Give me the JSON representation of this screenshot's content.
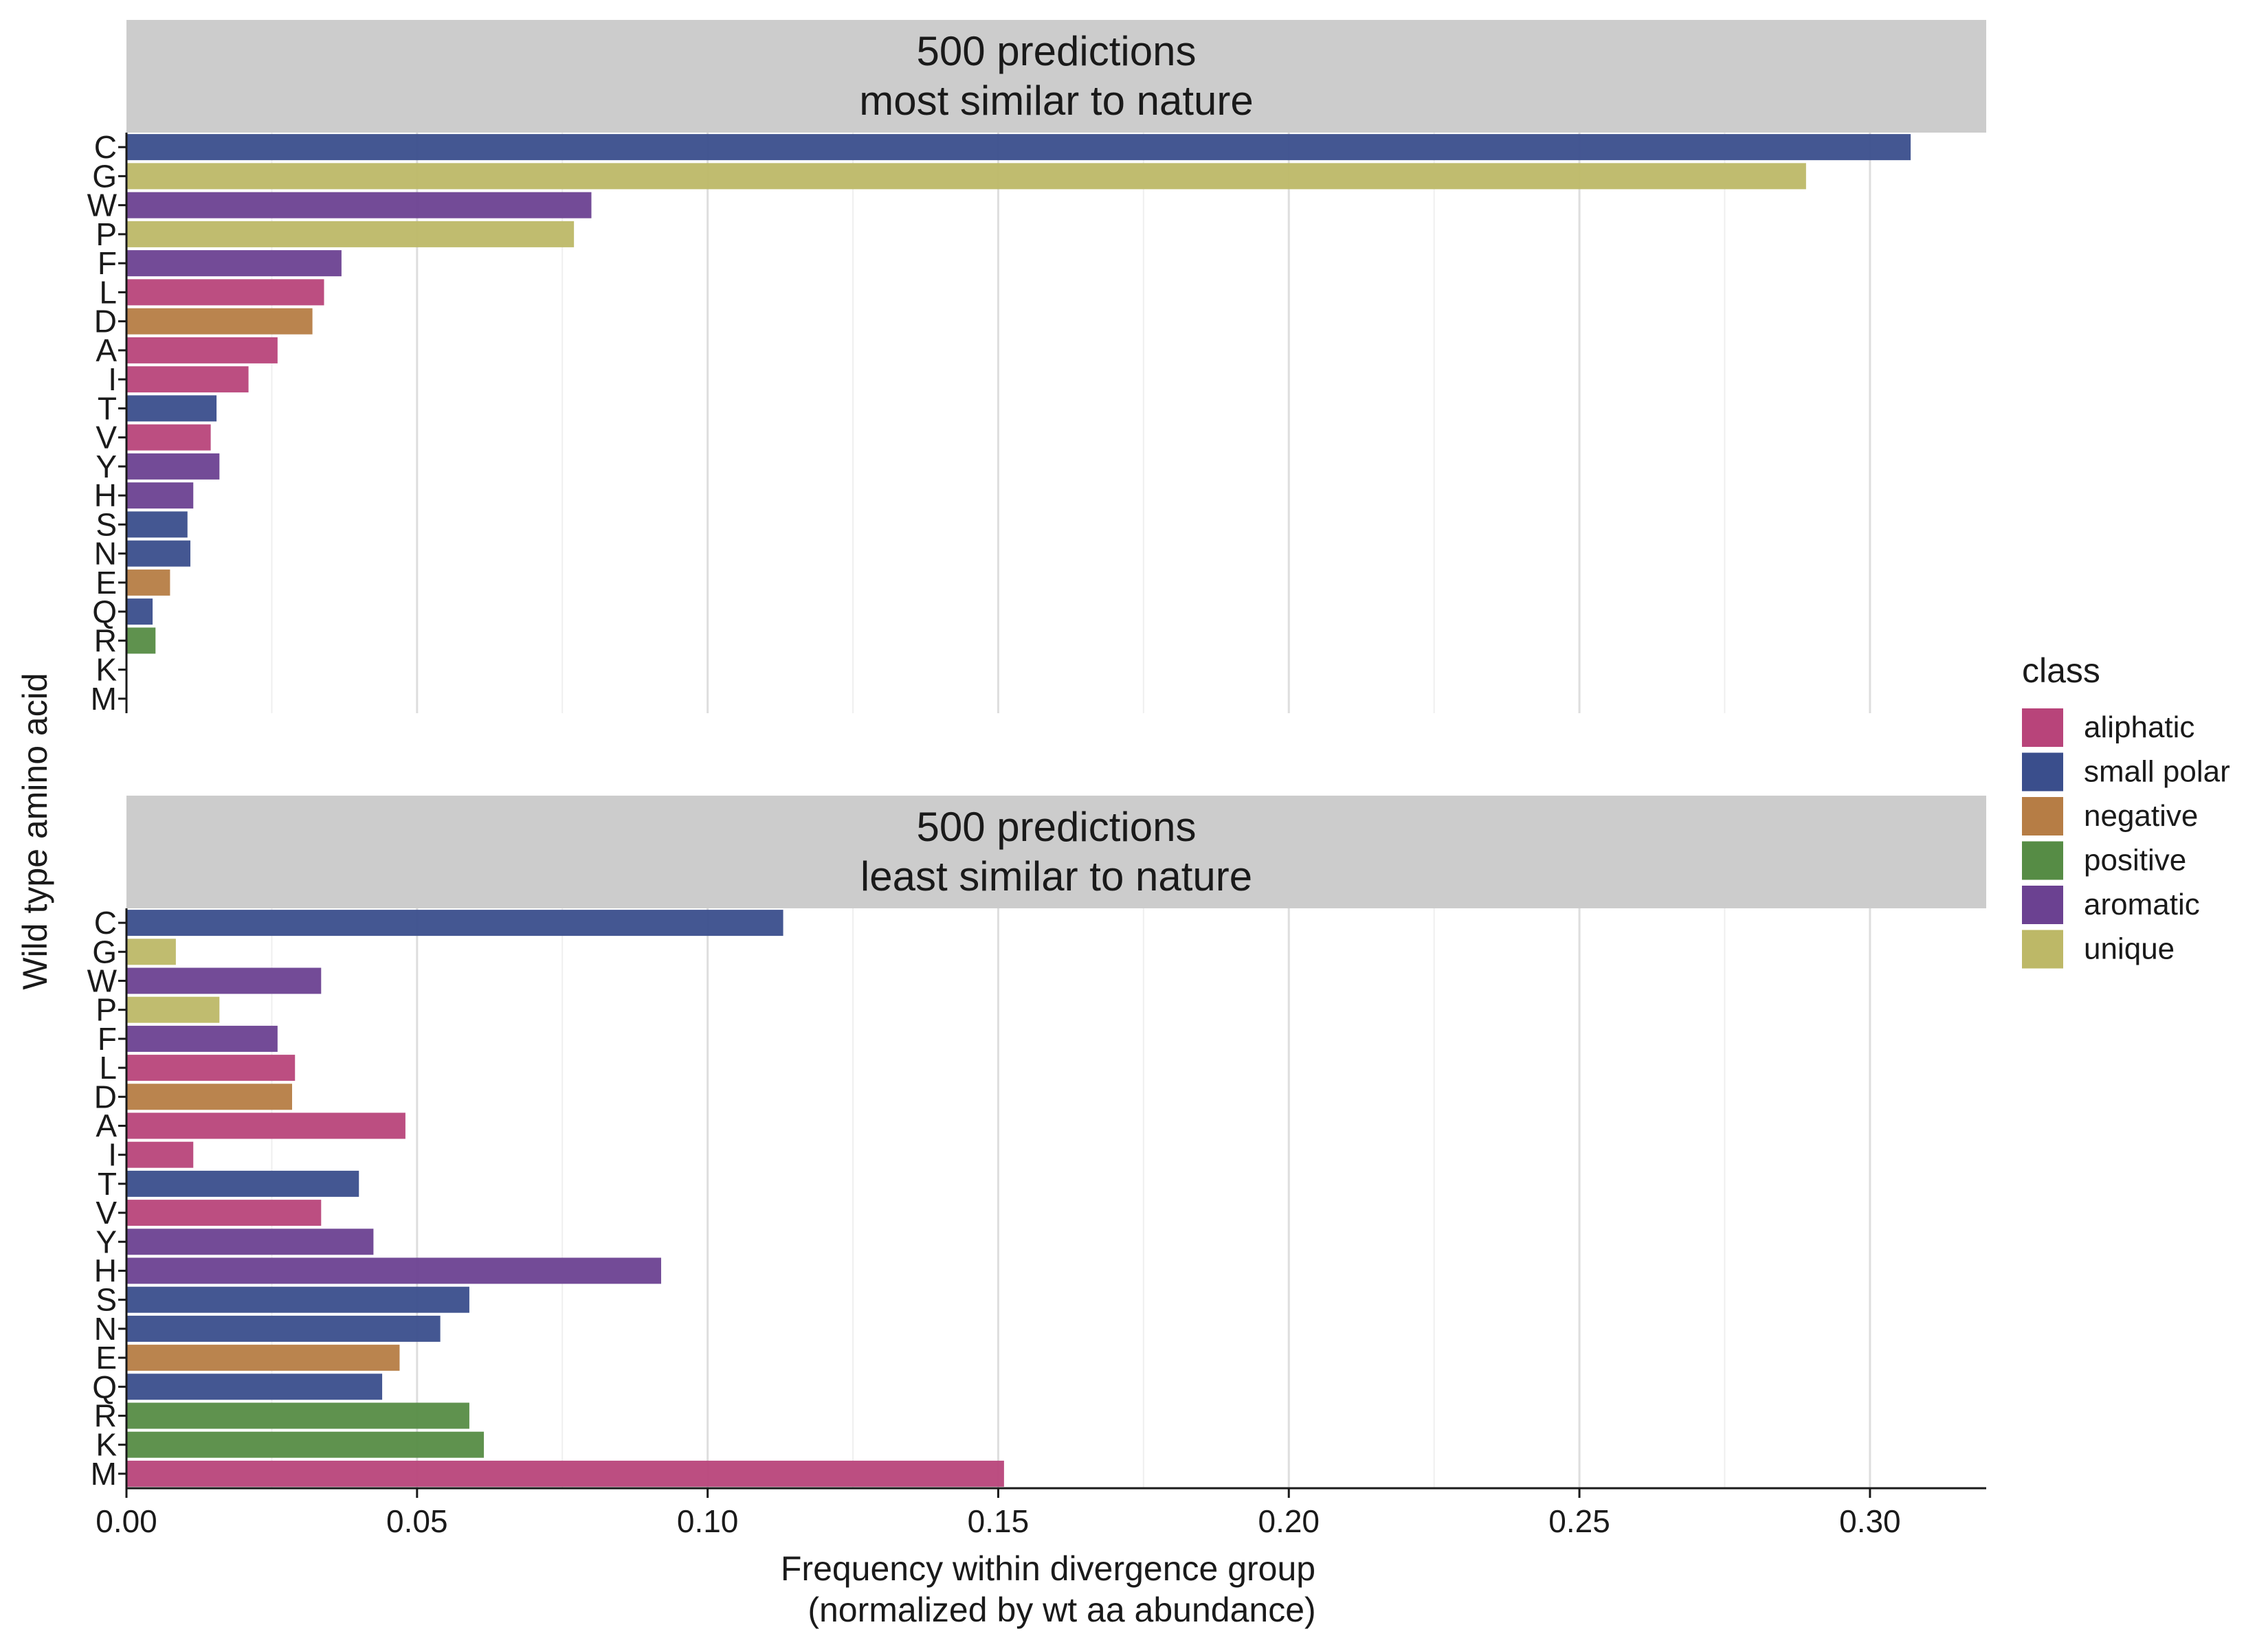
{
  "chart_data": {
    "type": "bar",
    "orientation": "horizontal",
    "ylabel": "Wild type amino acid",
    "xlabel_line1": "Frequency within divergence group",
    "xlabel_line2": "(normalized by wt aa abundance)",
    "xlim": [
      0,
      0.32
    ],
    "xticks": [
      0.0,
      0.05,
      0.1,
      0.15,
      0.2,
      0.25,
      0.3
    ],
    "xtick_labels": [
      "0.00",
      "0.05",
      "0.10",
      "0.15",
      "0.20",
      "0.25",
      "0.30"
    ],
    "grid": "vertical",
    "legend_position": "right",
    "categories": [
      "C",
      "G",
      "W",
      "P",
      "F",
      "L",
      "D",
      "A",
      "I",
      "T",
      "V",
      "Y",
      "H",
      "S",
      "N",
      "E",
      "Q",
      "R",
      "K",
      "M"
    ],
    "category_class": [
      "small polar",
      "unique",
      "aromatic",
      "unique",
      "aromatic",
      "aliphatic",
      "negative",
      "aliphatic",
      "aliphatic",
      "small polar",
      "aliphatic",
      "aromatic",
      "aromatic",
      "small polar",
      "small polar",
      "negative",
      "small polar",
      "positive",
      "positive",
      "aliphatic"
    ],
    "legend": {
      "title": "class",
      "entries": [
        {
          "label": "aliphatic",
          "color": "#B8447A"
        },
        {
          "label": "small polar",
          "color": "#3A4E8C"
        },
        {
          "label": "negative",
          "color": "#B67D45"
        },
        {
          "label": "positive",
          "color": "#568C45"
        },
        {
          "label": "aromatic",
          "color": "#6B4191"
        },
        {
          "label": "unique",
          "color": "#BDB867"
        }
      ]
    },
    "panels": [
      {
        "title_line1": "500 predictions",
        "title_line2": "most similar to nature",
        "values": [
          0.307,
          0.289,
          0.08,
          0.077,
          0.037,
          0.034,
          0.032,
          0.026,
          0.021,
          0.0155,
          0.0145,
          0.016,
          0.0115,
          0.0105,
          0.011,
          0.0075,
          0.0045,
          0.005,
          0.0,
          0.0
        ]
      },
      {
        "title_line1": "500 predictions",
        "title_line2": "least similar to nature",
        "values": [
          0.113,
          0.0085,
          0.0335,
          0.016,
          0.026,
          0.029,
          0.0285,
          0.048,
          0.0115,
          0.04,
          0.0335,
          0.0425,
          0.092,
          0.059,
          0.054,
          0.047,
          0.044,
          0.059,
          0.0615,
          0.151
        ]
      }
    ]
  }
}
